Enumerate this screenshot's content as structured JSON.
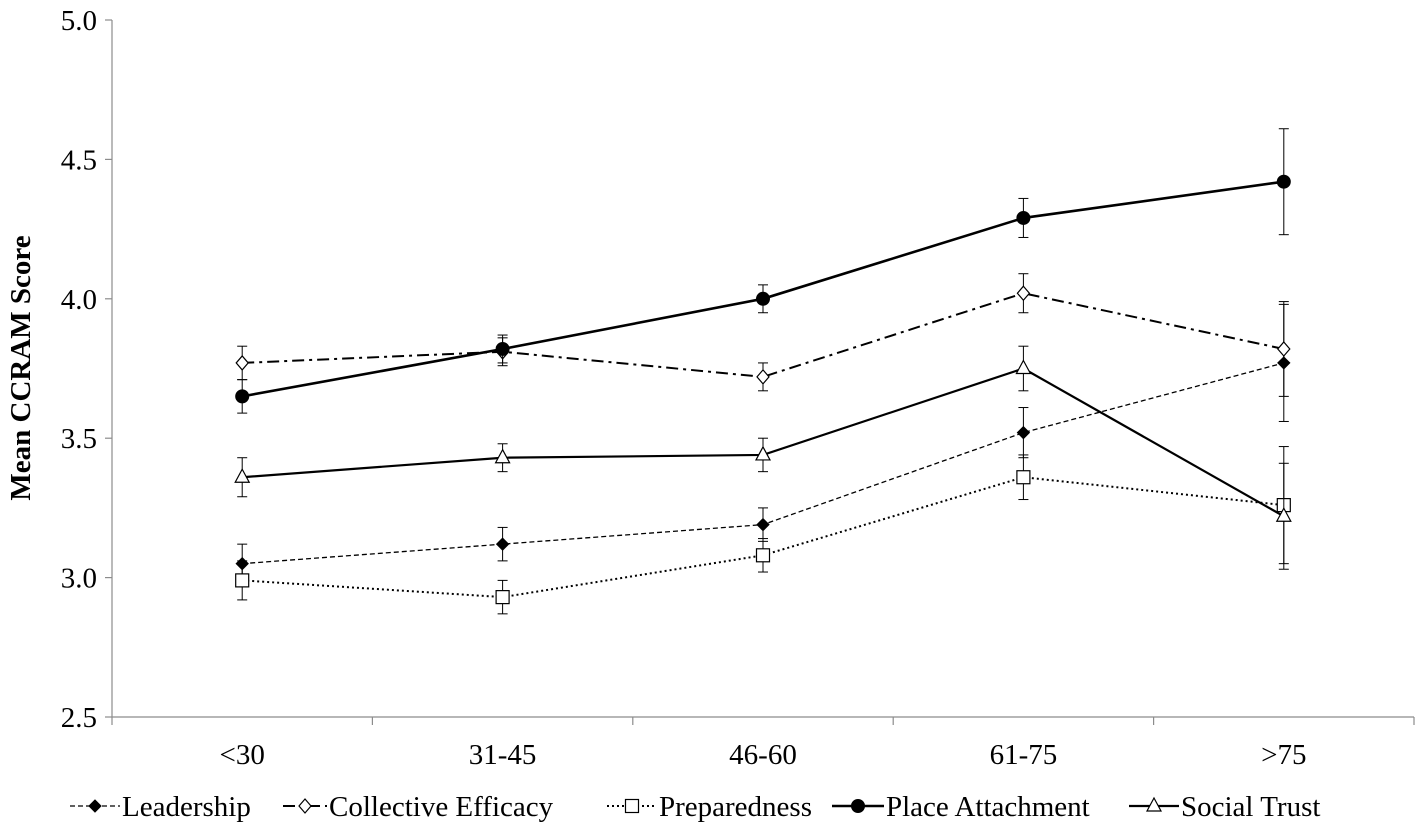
{
  "chart_data": {
    "type": "line",
    "ylabel": "Mean CCRAM Score",
    "xlabel": "",
    "ylim": [
      2.5,
      5.0
    ],
    "yticks": [
      "2.5",
      "3.0",
      "3.5",
      "4.0",
      "4.5",
      "5.0"
    ],
    "categories": [
      "<30",
      "31-45",
      "46-60",
      "61-75",
      ">75"
    ],
    "grid": false,
    "legend_position": "bottom",
    "series": [
      {
        "name": "Leadership",
        "values": [
          3.05,
          3.12,
          3.19,
          3.52,
          3.77
        ],
        "error": [
          0.07,
          0.06,
          0.06,
          0.09,
          0.21
        ],
        "line_style": "dashed",
        "marker": "filled-diamond"
      },
      {
        "name": "Collective Efficacy",
        "values": [
          3.77,
          3.81,
          3.72,
          4.02,
          3.82
        ],
        "error": [
          0.06,
          0.05,
          0.05,
          0.07,
          0.17
        ],
        "line_style": "dash-dot",
        "marker": "open-diamond"
      },
      {
        "name": "Preparedness",
        "values": [
          2.99,
          2.93,
          3.08,
          3.36,
          3.26
        ],
        "error": [
          0.07,
          0.06,
          0.06,
          0.08,
          0.21
        ],
        "line_style": "dotted",
        "marker": "open-square"
      },
      {
        "name": "Place Attachment",
        "values": [
          3.65,
          3.82,
          4.0,
          4.29,
          4.42
        ],
        "error": [
          0.06,
          0.05,
          0.05,
          0.07,
          0.19
        ],
        "line_style": "solid-thick",
        "marker": "filled-circle"
      },
      {
        "name": "Social Trust",
        "values": [
          3.36,
          3.43,
          3.44,
          3.75,
          3.22
        ],
        "error": [
          0.07,
          0.05,
          0.06,
          0.08,
          0.19
        ],
        "line_style": "solid",
        "marker": "open-triangle"
      }
    ]
  }
}
